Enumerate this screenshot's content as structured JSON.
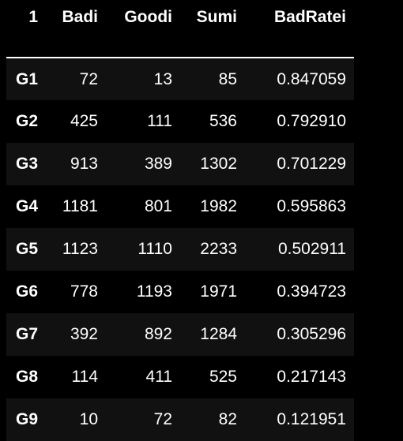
{
  "table": {
    "columns": [
      "1",
      "Badi",
      "Goodi",
      "Sumi",
      "BadRatei"
    ],
    "rows": [
      {
        "index": "G1",
        "bad": "72",
        "good": "13",
        "sum": "85",
        "rate": "0.847059"
      },
      {
        "index": "G2",
        "bad": "425",
        "good": "111",
        "sum": "536",
        "rate": "0.792910"
      },
      {
        "index": "G3",
        "bad": "913",
        "good": "389",
        "sum": "1302",
        "rate": "0.701229"
      },
      {
        "index": "G4",
        "bad": "1181",
        "good": "801",
        "sum": "1982",
        "rate": "0.595863"
      },
      {
        "index": "G5",
        "bad": "1123",
        "good": "1110",
        "sum": "2233",
        "rate": "0.502911"
      },
      {
        "index": "G6",
        "bad": "778",
        "good": "1193",
        "sum": "1971",
        "rate": "0.394723"
      },
      {
        "index": "G7",
        "bad": "392",
        "good": "892",
        "sum": "1284",
        "rate": "0.305296"
      },
      {
        "index": "G8",
        "bad": "114",
        "good": "411",
        "sum": "525",
        "rate": "0.217143"
      },
      {
        "index": "G9",
        "bad": "10",
        "good": "72",
        "sum": "82",
        "rate": "0.121951"
      }
    ]
  },
  "colors": {
    "background": "#000000",
    "row_stripe": "#111111",
    "text": "#ffffff",
    "header_rule": "#ffffff"
  }
}
